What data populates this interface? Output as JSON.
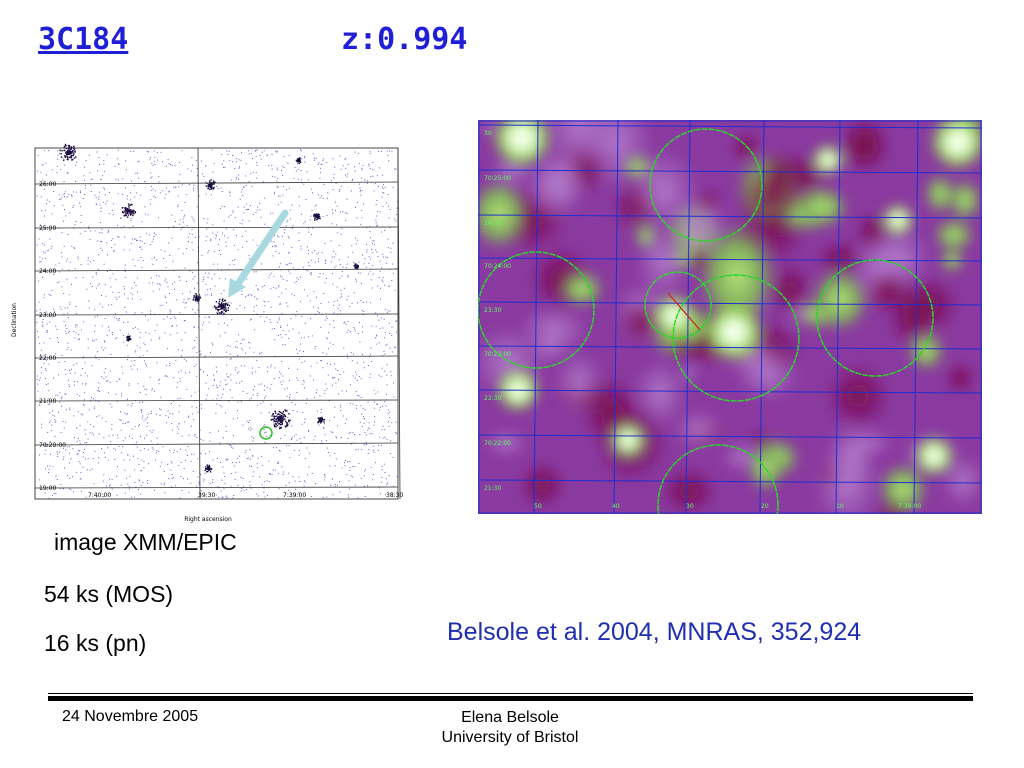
{
  "title": {
    "link_text": "3C184",
    "redshift": "z:0.994"
  },
  "xray_image": {
    "dec_ticks": [
      "26:00",
      "25:00",
      "24:00",
      "23:00",
      "22:00",
      "21:00",
      "70:20:00",
      "19:00"
    ],
    "ra_ticks": [
      "7:40:00",
      "39:30",
      "7:39:00",
      "38:30"
    ],
    "xlabel": "Right ascension",
    "ylabel": "Declination",
    "arrow_color": "#a8d8e0",
    "marker_color": "#2ec02e"
  },
  "smoothed_image": {
    "dec_ticks": [
      "30",
      "70:25:00",
      "24:30",
      "70:24:00",
      "23:30",
      "70:23:00",
      "22:30",
      "70:22:00",
      "21:30"
    ],
    "ra_ticks": [
      "50",
      "40",
      "30",
      "20",
      "10",
      "7:39:00"
    ],
    "circle_color": "#2ed42e",
    "line_color": "#d42020",
    "grid_color": "#1e2ed0"
  },
  "captions": {
    "instrument": "image XMM/EPIC",
    "mos": "54 ks (MOS)",
    "pn": "16 ks (pn)"
  },
  "citation": "Belsole et al. 2004, MNRAS, 352,924",
  "footer": {
    "date": "24 Novembre 2005",
    "author": "Elena Belsole",
    "affiliation": "University of Bristol"
  }
}
